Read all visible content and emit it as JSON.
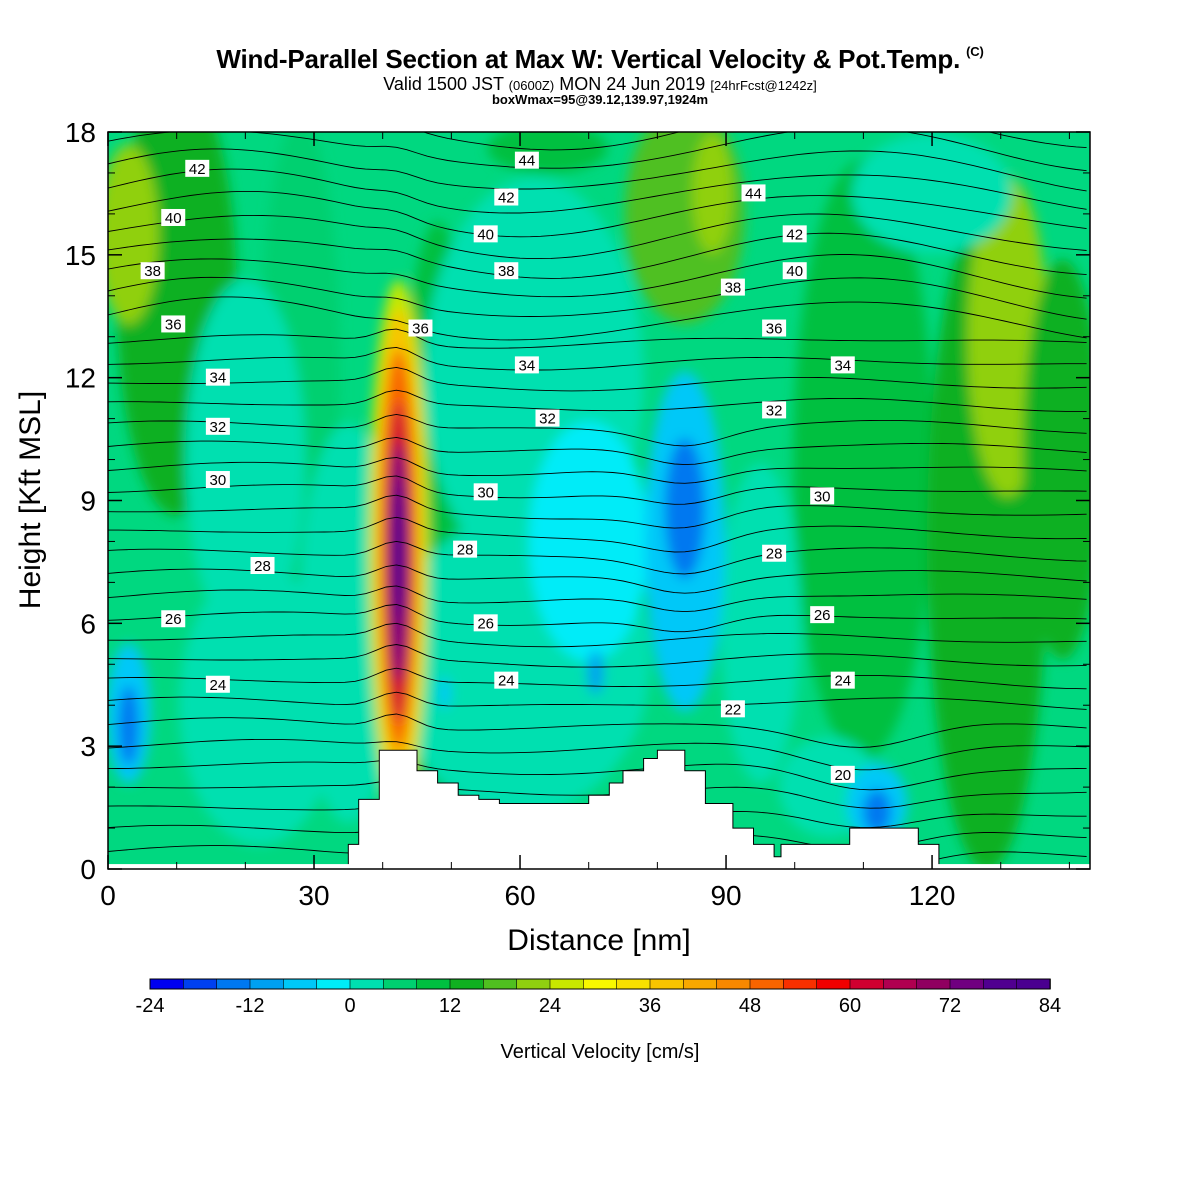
{
  "header": {
    "title": "Wind-Parallel Section at Max W: Vertical Velocity & Pot.Temp.",
    "copyright": "(C)",
    "valid_prefix": "Valid 1500 JST",
    "valid_utc": "(0600Z)",
    "valid_date": "MON 24 Jun 2019",
    "forecast": "[24hrFcst@1242z]",
    "boxmax": "boxWmax=95@39.12,139.97,1924m"
  },
  "chart_data": {
    "type": "heatmap",
    "xlabel": "Distance [nm]",
    "ylabel": "Height [Kft MSL]",
    "xlim": [
      0,
      143
    ],
    "ylim": [
      0,
      18
    ],
    "x_ticks": [
      0,
      30,
      60,
      90,
      120
    ],
    "x_tick_labels": [
      "0",
      "30",
      "60",
      "90",
      "120"
    ],
    "y_ticks": [
      0,
      3,
      6,
      9,
      12,
      15,
      18
    ],
    "y_tick_labels": [
      "0",
      "3",
      "6",
      "9",
      "12",
      "15",
      "18"
    ],
    "colorbar": {
      "label": "Vertical Velocity [cm/s]",
      "min": -24,
      "max": 84,
      "step": 4,
      "tick_labels": [
        "-24",
        "-12",
        "0",
        "12",
        "24",
        "36",
        "48",
        "60",
        "72",
        "84"
      ],
      "colors": [
        "#0000f0",
        "#0040f0",
        "#0078f0",
        "#00a0f0",
        "#00c8f8",
        "#00ecf8",
        "#00e0b0",
        "#00d070",
        "#00c040",
        "#10b020",
        "#50c020",
        "#90d010",
        "#c8e800",
        "#f8f800",
        "#f8e000",
        "#f8c400",
        "#f8a800",
        "#f88800",
        "#f86400",
        "#f83000",
        "#f00000",
        "#d00030",
        "#b00050",
        "#900060",
        "#700080",
        "#500090",
        "#4a0090"
      ]
    },
    "contours": {
      "quantity": "Potential Temperature",
      "labels": [
        {
          "text": "42",
          "x": 13,
          "y": 17.1
        },
        {
          "text": "40",
          "x": 9.5,
          "y": 15.9
        },
        {
          "text": "38",
          "x": 6.5,
          "y": 14.6
        },
        {
          "text": "36",
          "x": 9.5,
          "y": 13.3
        },
        {
          "text": "34",
          "x": 16,
          "y": 12.0
        },
        {
          "text": "32",
          "x": 16,
          "y": 10.8
        },
        {
          "text": "30",
          "x": 16,
          "y": 9.5
        },
        {
          "text": "28",
          "x": 22.5,
          "y": 7.4
        },
        {
          "text": "26",
          "x": 9.5,
          "y": 6.1
        },
        {
          "text": "24",
          "x": 16,
          "y": 4.5
        },
        {
          "text": "44",
          "x": 61,
          "y": 17.3
        },
        {
          "text": "42",
          "x": 58,
          "y": 16.4
        },
        {
          "text": "40",
          "x": 55,
          "y": 15.5
        },
        {
          "text": "38",
          "x": 58,
          "y": 14.6
        },
        {
          "text": "36",
          "x": 45.5,
          "y": 13.2
        },
        {
          "text": "34",
          "x": 61,
          "y": 12.3
        },
        {
          "text": "32",
          "x": 64,
          "y": 11.0
        },
        {
          "text": "30",
          "x": 55,
          "y": 9.2
        },
        {
          "text": "28",
          "x": 52,
          "y": 7.8
        },
        {
          "text": "26",
          "x": 55,
          "y": 6.0
        },
        {
          "text": "24",
          "x": 58,
          "y": 4.6
        },
        {
          "text": "44",
          "x": 94,
          "y": 16.5
        },
        {
          "text": "42",
          "x": 100,
          "y": 15.5
        },
        {
          "text": "40",
          "x": 100,
          "y": 14.6
        },
        {
          "text": "38",
          "x": 91,
          "y": 14.2
        },
        {
          "text": "36",
          "x": 97,
          "y": 13.2
        },
        {
          "text": "34",
          "x": 107,
          "y": 12.3
        },
        {
          "text": "32",
          "x": 97,
          "y": 11.2
        },
        {
          "text": "30",
          "x": 104,
          "y": 9.1
        },
        {
          "text": "28",
          "x": 97,
          "y": 7.7
        },
        {
          "text": "26",
          "x": 104,
          "y": 6.2
        },
        {
          "text": "24",
          "x": 107,
          "y": 4.6
        },
        {
          "text": "22",
          "x": 91,
          "y": 3.9
        },
        {
          "text": "20",
          "x": 107,
          "y": 2.3
        }
      ]
    },
    "terrain": [
      [
        35,
        0.6
      ],
      [
        36.5,
        0.6
      ],
      [
        36.5,
        1.7
      ],
      [
        39.5,
        1.7
      ],
      [
        39.5,
        2.9
      ],
      [
        45,
        2.9
      ],
      [
        45,
        2.4
      ],
      [
        48,
        2.4
      ],
      [
        48,
        2.1
      ],
      [
        51,
        2.1
      ],
      [
        51,
        1.8
      ],
      [
        54,
        1.8
      ],
      [
        54,
        1.7
      ],
      [
        57,
        1.7
      ],
      [
        57,
        1.6
      ],
      [
        70,
        1.6
      ],
      [
        70,
        1.8
      ],
      [
        73,
        1.8
      ],
      [
        73,
        2.1
      ],
      [
        75,
        2.1
      ],
      [
        75,
        2.4
      ],
      [
        78,
        2.4
      ],
      [
        78,
        2.7
      ],
      [
        80,
        2.7
      ],
      [
        80,
        2.9
      ],
      [
        84,
        2.9
      ],
      [
        84,
        2.4
      ],
      [
        87,
        2.4
      ],
      [
        87,
        1.6
      ],
      [
        91,
        1.6
      ],
      [
        91,
        1.0
      ],
      [
        94,
        1.0
      ],
      [
        94,
        0.6
      ],
      [
        97,
        0.6
      ],
      [
        97,
        0.3
      ],
      [
        98,
        0.3
      ],
      [
        98,
        0.6
      ],
      [
        108,
        0.6
      ],
      [
        108,
        1.0
      ],
      [
        118,
        1.0
      ],
      [
        118,
        0.6
      ],
      [
        121,
        0.6
      ],
      [
        121,
        0
      ]
    ]
  }
}
